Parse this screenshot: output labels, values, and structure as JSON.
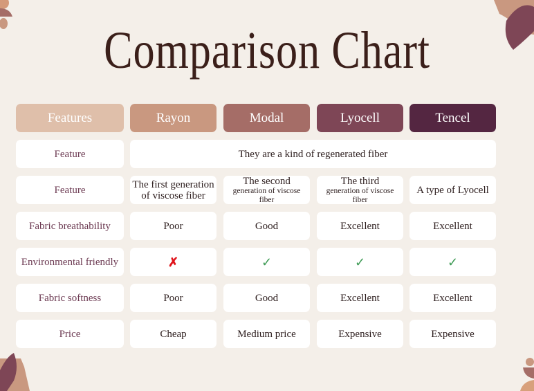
{
  "title": "Comparison Chart",
  "colors": {
    "features": "#dfbfaa",
    "rayon": "#c99880",
    "modal": "#a56d67",
    "lyocell": "#7e4656",
    "tencel": "#542641",
    "check": "#3e9b55",
    "cross": "#e0141b"
  },
  "headers": [
    "Features",
    "Rayon",
    "Modal",
    "Lyocell",
    "Tencel"
  ],
  "rows": [
    {
      "label": "Feature",
      "merged": "They are a kind of regenerated fiber"
    },
    {
      "label": "Feature",
      "values": [
        "The first generation of viscose fiber",
        {
          "main": "The second",
          "sub": "generation of viscose fiber"
        },
        {
          "main": "The third",
          "sub": "generation of viscose fiber"
        },
        "A type of Lyocell"
      ]
    },
    {
      "label": "Fabric breathability",
      "values": [
        "Poor",
        "Good",
        "Excellent",
        "Excellent"
      ]
    },
    {
      "label": "Environmental friendly",
      "values": [
        "cross-icon",
        "check-icon",
        "check-icon",
        "check-icon"
      ]
    },
    {
      "label": "Fabric softness",
      "values": [
        "Poor",
        "Good",
        "Excellent",
        "Excellent"
      ]
    },
    {
      "label": "Price",
      "values": [
        "Cheap",
        "Medium price",
        "Expensive",
        "Expensive"
      ]
    }
  ]
}
